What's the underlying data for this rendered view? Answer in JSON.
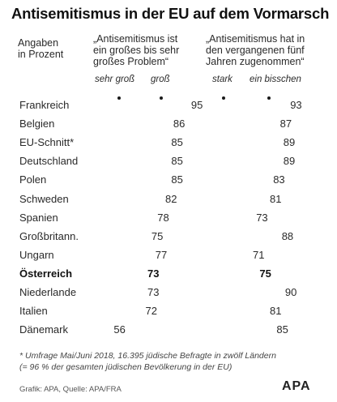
{
  "title": "Antisemitismus in der EU auf dem Vormarsch",
  "header": {
    "left": "Angaben\nin Prozent",
    "col1": "„Antisemitismus ist\nein großes bis sehr\ngroßes Problem“",
    "col2": "„Antisemitismus hat in\nden vergangenen fünf\nJahren zugenommen“"
  },
  "subheaders": {
    "c1a": "sehr groß",
    "c1b": "groß",
    "c2a": "stark",
    "c2b": "ein bisschen"
  },
  "chart_data": {
    "type": "table",
    "columns": [
      "„Antisemitismus ist ein großes bis sehr großes Problem“",
      "„Antisemitismus hat in den vergangenen fünf Jahren zugenommen“"
    ],
    "rows": [
      {
        "country": "Frankreich",
        "problem": 95,
        "increase": 93
      },
      {
        "country": "Belgien",
        "problem": 86,
        "increase": 87
      },
      {
        "country": "EU-Schnitt*",
        "problem": 85,
        "increase": 89
      },
      {
        "country": "Deutschland",
        "problem": 85,
        "increase": 89
      },
      {
        "country": "Polen",
        "problem": 85,
        "increase": 83
      },
      {
        "country": "Schweden",
        "problem": 82,
        "increase": 81
      },
      {
        "country": "Spanien",
        "problem": 78,
        "increase": 73
      },
      {
        "country": "Großbritann.",
        "problem": 75,
        "increase": 88
      },
      {
        "country": "Ungarn",
        "problem": 77,
        "increase": 71
      },
      {
        "country": "Österreich",
        "problem": 73,
        "increase": 75,
        "highlight": true
      },
      {
        "country": "Niederlande",
        "problem": 73,
        "increase": 90
      },
      {
        "country": "Italien",
        "problem": 72,
        "increase": 81
      },
      {
        "country": "Dänemark",
        "problem": 56,
        "increase": 85
      }
    ]
  },
  "footnote": "* Umfrage Mai/Juni 2018, 16.395 jüdische Befragte in zwölf Ländern\n(= 96 % der gesamten jüdischen Bevölkerung in der EU)",
  "credit": "Grafik:   APA, Quelle: APA/FRA",
  "logo": "APA"
}
